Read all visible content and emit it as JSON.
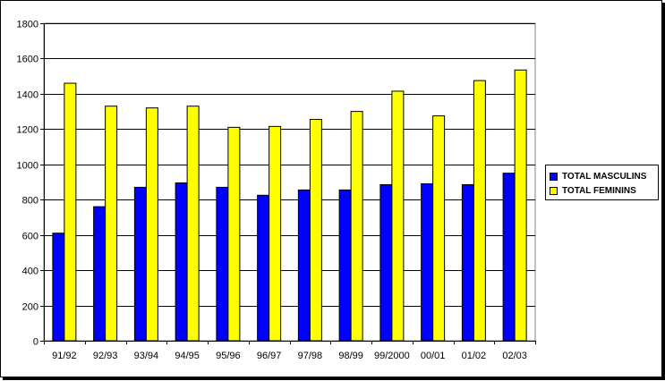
{
  "chart_data": {
    "type": "bar",
    "title": "",
    "xlabel": "",
    "ylabel": "",
    "ylim": [
      0,
      1800
    ],
    "yticks": [
      0,
      200,
      400,
      600,
      800,
      1000,
      1200,
      1400,
      1600,
      1800
    ],
    "grid": "horizontal",
    "legend_position": "right",
    "categories": [
      "91/92",
      "92/93",
      "93/94",
      "94/95",
      "95/96",
      "96/97",
      "97/98",
      "98/99",
      "99/2000",
      "00/01",
      "01/02",
      "02/03"
    ],
    "series": [
      {
        "name": "TOTAL MASCULINS",
        "color": "#0000ff",
        "values": [
          610,
          760,
          870,
          895,
          870,
          825,
          855,
          855,
          885,
          890,
          885,
          950
        ]
      },
      {
        "name": "TOTAL FEMININS",
        "color": "#ffff00",
        "values": [
          1460,
          1330,
          1320,
          1330,
          1210,
          1215,
          1255,
          1300,
          1415,
          1275,
          1475,
          1535
        ]
      }
    ]
  }
}
